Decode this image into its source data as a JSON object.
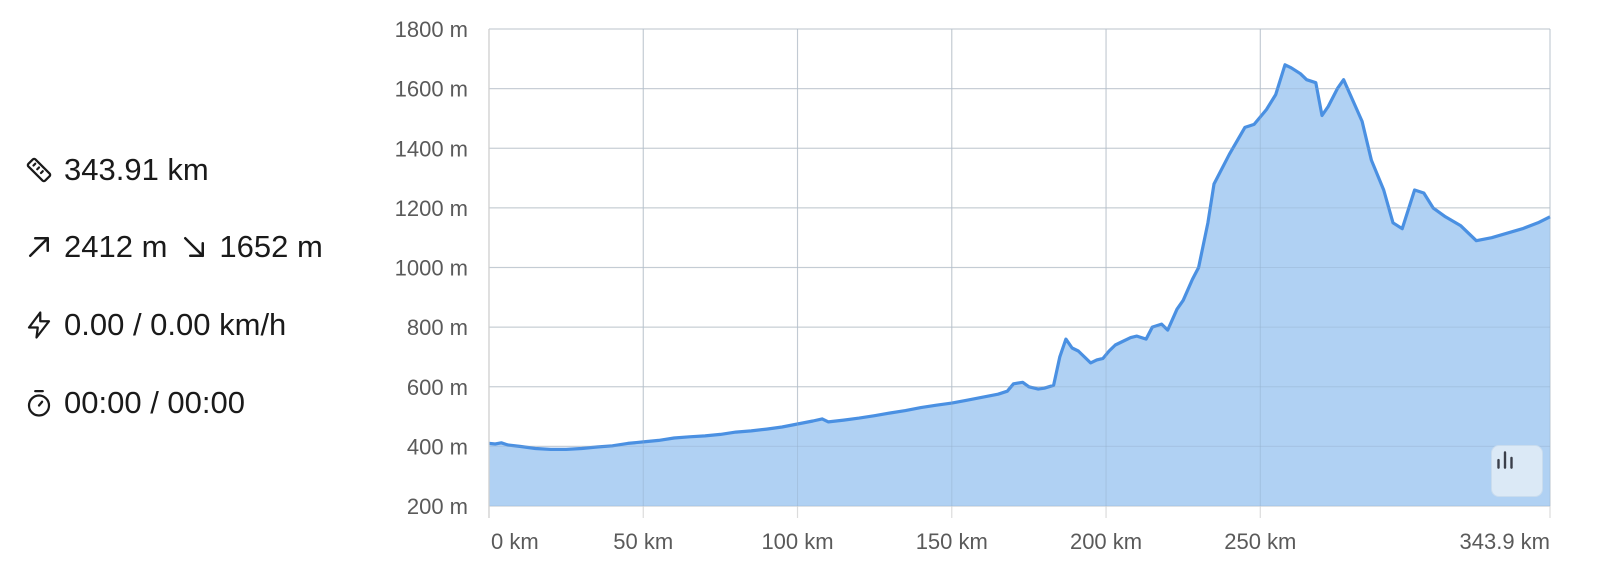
{
  "stats": {
    "distance": "343.91 km",
    "ascent": "2412 m",
    "descent": "1652 m",
    "speed": "0.00 / 0.00 km/h",
    "time": "00:00 / 00:00"
  },
  "icons": {
    "distance": "ruler-icon",
    "ascent": "arrow-up-right-icon",
    "descent": "arrow-down-right-icon",
    "speed": "lightning-icon",
    "time": "stopwatch-icon",
    "toggle": "bar-chart-icon"
  },
  "colors": {
    "line": "#4a90e2",
    "fill": "#a9cdf2",
    "grid": "#dcdcdc"
  },
  "chart_data": {
    "type": "area",
    "title": "",
    "xlabel": "",
    "ylabel": "",
    "xlim": [
      0,
      343.9
    ],
    "ylim": [
      200,
      1800
    ],
    "grid": true,
    "x_ticks": [
      "0 km",
      "50 km",
      "100 km",
      "150 km",
      "200 km",
      "250 km",
      "343.9 km"
    ],
    "x_tick_values": [
      0,
      50,
      100,
      150,
      200,
      250,
      343.9
    ],
    "y_ticks": [
      "200 m",
      "400 m",
      "600 m",
      "800 m",
      "1000 m",
      "1200 m",
      "1400 m",
      "1600 m",
      "1800 m"
    ],
    "y_tick_values": [
      200,
      400,
      600,
      800,
      1000,
      1200,
      1400,
      1600,
      1800
    ],
    "series": [
      {
        "x": [
          0,
          2,
          4,
          6,
          10,
          15,
          20,
          25,
          30,
          35,
          40,
          45,
          50,
          55,
          60,
          65,
          70,
          75,
          80,
          85,
          90,
          95,
          100,
          105,
          108,
          110,
          115,
          120,
          125,
          130,
          135,
          140,
          145,
          150,
          155,
          160,
          165,
          168,
          170,
          173,
          175,
          178,
          180,
          183,
          185,
          187,
          189,
          191,
          193,
          195,
          197,
          199,
          201,
          203,
          205,
          208,
          210,
          213,
          215,
          218,
          220,
          223,
          225,
          228,
          230,
          233,
          235,
          240,
          245,
          248,
          252,
          255,
          258,
          260,
          263,
          265,
          268,
          270,
          272,
          275,
          277,
          280,
          283,
          286,
          290,
          293,
          296,
          300,
          303,
          306,
          310,
          315,
          320,
          325,
          330,
          335,
          340,
          343.9
        ],
        "y": [
          410,
          408,
          412,
          405,
          400,
          393,
          390,
          390,
          393,
          398,
          402,
          410,
          415,
          420,
          428,
          432,
          435,
          440,
          448,
          452,
          458,
          465,
          475,
          485,
          492,
          482,
          488,
          495,
          503,
          512,
          520,
          530,
          538,
          545,
          555,
          565,
          575,
          585,
          610,
          615,
          600,
          592,
          595,
          605,
          700,
          760,
          730,
          720,
          700,
          680,
          690,
          695,
          720,
          740,
          750,
          765,
          770,
          760,
          800,
          810,
          790,
          860,
          890,
          960,
          1000,
          1150,
          1280,
          1380,
          1470,
          1480,
          1530,
          1580,
          1680,
          1670,
          1650,
          1630,
          1620,
          1510,
          1540,
          1600,
          1630,
          1560,
          1490,
          1360,
          1260,
          1150,
          1130,
          1260,
          1250,
          1200,
          1170,
          1140,
          1090,
          1100,
          1115,
          1130,
          1150,
          1170
        ]
      }
    ]
  }
}
